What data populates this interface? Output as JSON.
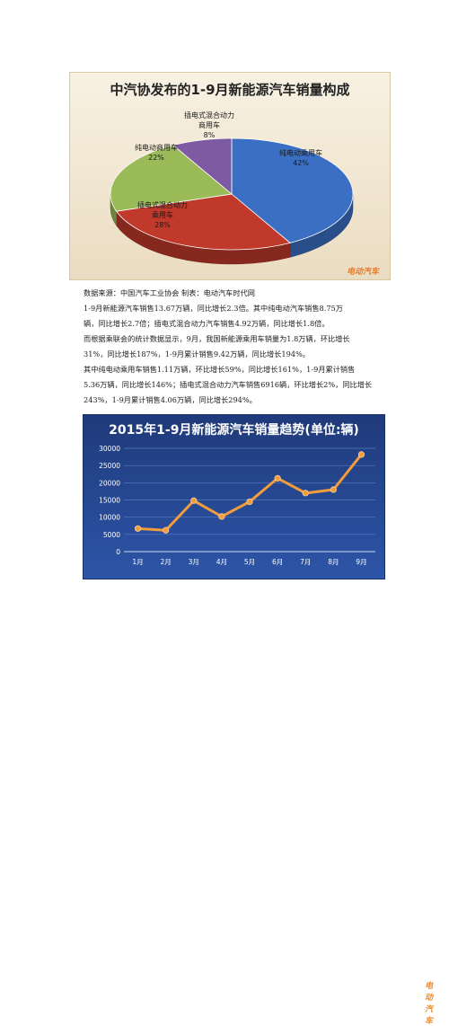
{
  "pie_chart": {
    "chart_data": {
      "type": "pie",
      "title": "中汽协发布的1-9月新能源汽车销量构成",
      "slices": [
        {
          "name": "纯电动乘用车",
          "value": 42,
          "label": "42%",
          "color": "#3a6fc4"
        },
        {
          "name": "插电式混合动力乘用车",
          "value": 28,
          "label": "28%",
          "color": "#c0392b"
        },
        {
          "name": "纯电动商用车",
          "value": 22,
          "label": "22%",
          "color": "#9bbb59"
        },
        {
          "name": "插电式混合动力商用车",
          "value": 8,
          "label": "8%",
          "color": "#7e5aa2"
        }
      ]
    },
    "slice_labels": [
      {
        "line1": "纯电动乘用车",
        "line2": "",
        "pct": "42%"
      },
      {
        "line1": "插电式混合动力",
        "line2": "乘用车",
        "pct": "28%"
      },
      {
        "line1": "纯电动商用车",
        "line2": "",
        "pct": "22%"
      },
      {
        "line1": "插电式混合动力",
        "line2": "商用车",
        "pct": "8%"
      }
    ]
  },
  "paragraphs": [
    "数据来源：中国汽车工业协会 制表：电动汽车时代网",
    "1-9月新能源汽车销售13.67万辆，同比增长2.3倍。其中纯电动汽车销售8.75万",
    "辆，同比增长2.7倍；插电式混合动力汽车销售4.92万辆，同比增长1.8倍。",
    "而根据乘联会的统计数据显示，9月，我国新能源乘用车销量为1.8万辆，环比增长",
    "31%，同比增长187%，1-9月累计销售9.42万辆，同比增长194%。",
    "其中纯电动乘用车销售1.11万辆，环比增长59%，同比增长161%，1-9月累计销售",
    "5.36万辆，同比增长146%；插电式混合动力汽车销售6916辆，环比增长2%，同比增长",
    "243%，1-9月累计销售4.06万辆，同比增长294%。"
  ],
  "line_chart": {
    "chart_data": {
      "type": "line",
      "title": "2015年1-9月新能源汽车销量趋势(单位:辆)",
      "categories": [
        "1月",
        "2月",
        "3月",
        "4月",
        "5月",
        "6月",
        "7月",
        "8月",
        "9月"
      ],
      "series": [
        {
          "values": [
            6700,
            6200,
            14800,
            10200,
            14500,
            21300,
            17000,
            18000,
            28200
          ]
        }
      ],
      "yticks": [
        "0",
        "5000",
        "10000",
        "15000",
        "20000",
        "25000",
        "30000"
      ],
      "ylim": [
        0,
        30000
      ],
      "grid": true,
      "line_color": "#f39c3c"
    }
  },
  "watermark": "电动汽车"
}
